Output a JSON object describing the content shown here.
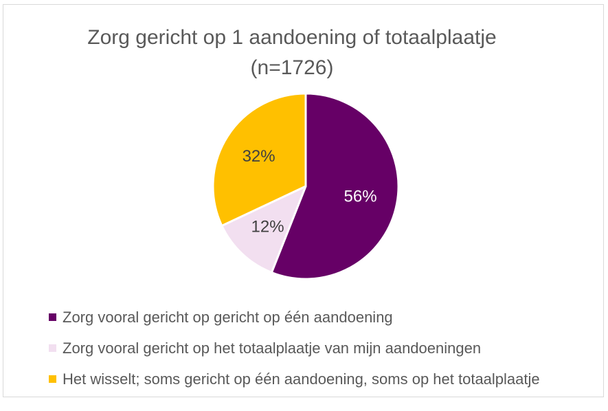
{
  "chart_data": {
    "type": "pie",
    "title": "Zorg gericht op 1 aandoening of totaalplaatje",
    "subtitle": "(n=1726)",
    "categories": [
      "Zorg vooral gericht op gericht op één aandoening",
      "Zorg vooral gericht op het totaalplaatje van mijn aandoeningen",
      "Het wisselt; soms gericht op één aandoening, soms op het totaalplaatje"
    ],
    "values": [
      56,
      12,
      32
    ],
    "data_labels": [
      "56%",
      "12%",
      "32%"
    ],
    "colors": [
      "#660066",
      "#f2dff0",
      "#ffc000"
    ],
    "label_colors": [
      "#ffffff",
      "#404040",
      "#404040"
    ],
    "legend_position": "bottom"
  }
}
